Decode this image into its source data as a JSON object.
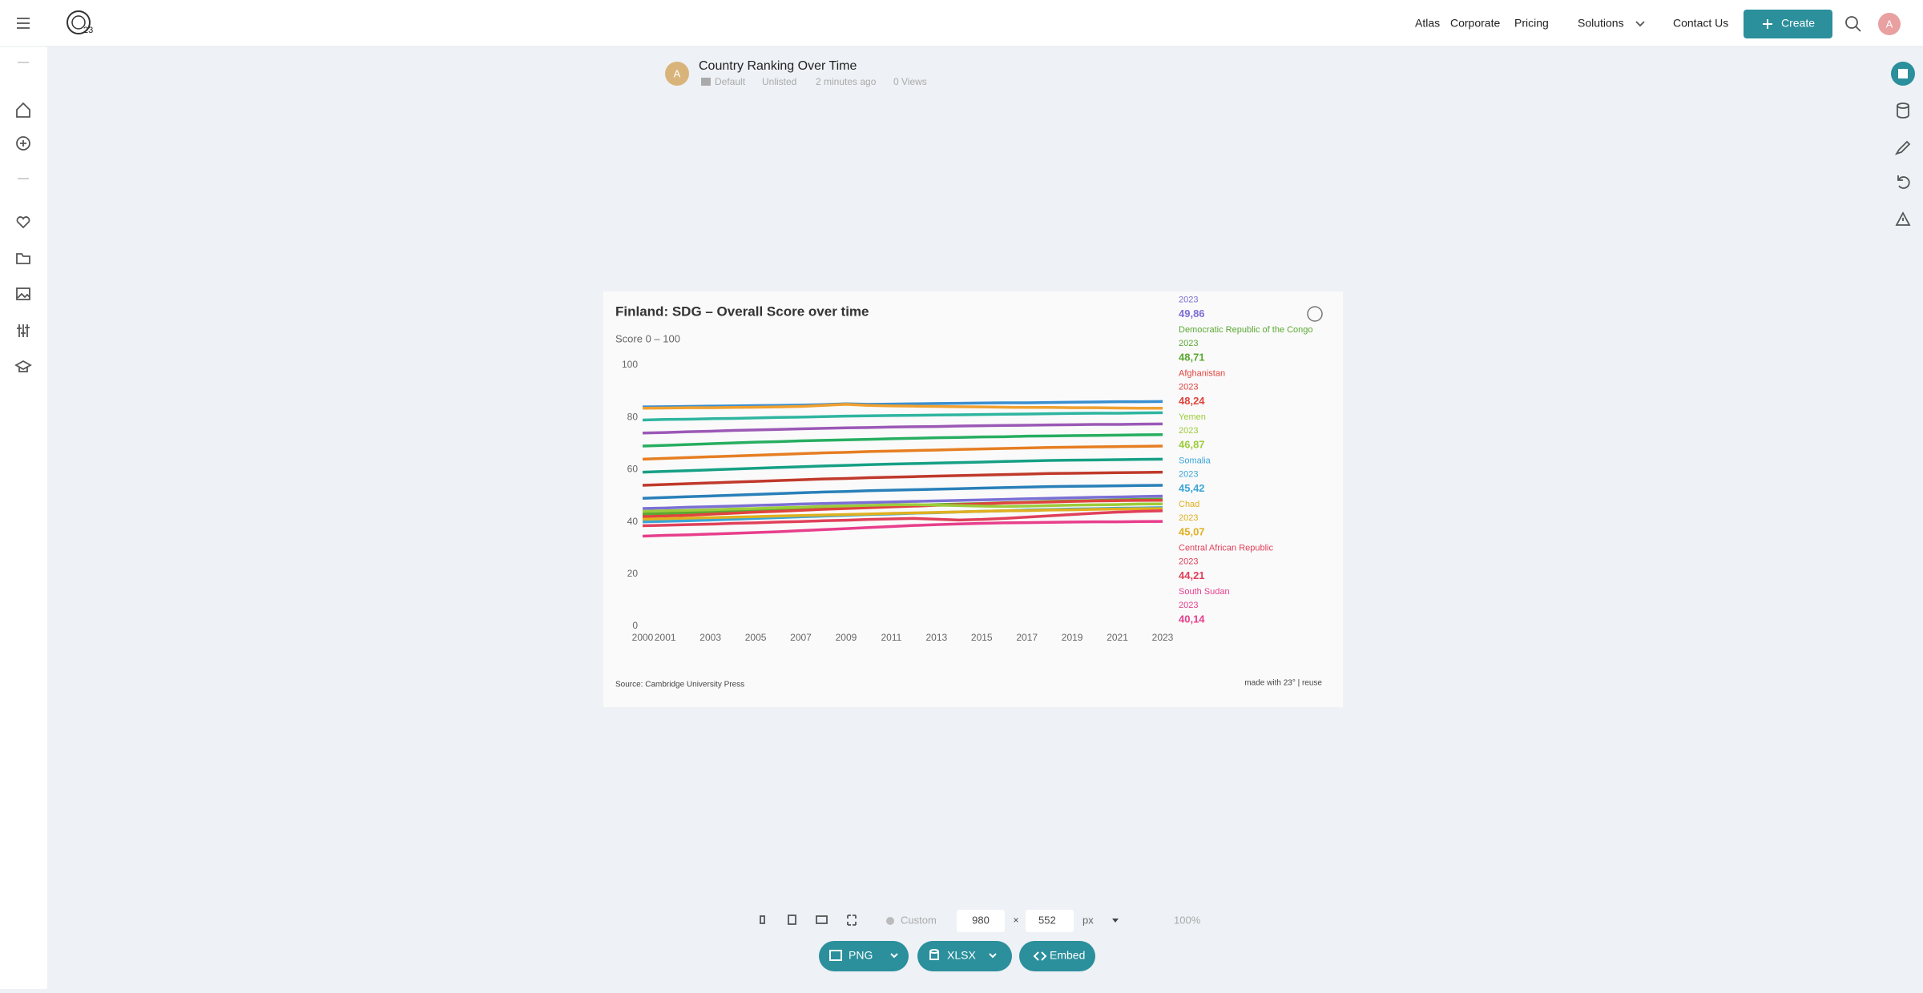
{
  "nav": {
    "items": [
      "Atlas",
      "Corporate",
      "Pricing",
      "Solutions",
      "Contact Us"
    ],
    "create": "Create",
    "avatar": "A"
  },
  "doc": {
    "avatar": "A",
    "title": "Country Ranking Over Time",
    "folder": "Default",
    "visibility": "Unlisted",
    "time": "2 minutes ago",
    "views": "0 Views"
  },
  "chart_data": {
    "type": "line",
    "title": "Finland: SDG – Overall Score over time",
    "subtitle": "Score 0 – 100",
    "source": "Source: Cambridge University Press",
    "credit": "made with 23° | reuse",
    "x": [
      2000,
      2001,
      2002,
      2003,
      2004,
      2005,
      2006,
      2007,
      2008,
      2009,
      2010,
      2011,
      2012,
      2013,
      2014,
      2015,
      2016,
      2017,
      2018,
      2019,
      2020,
      2021,
      2022,
      2023
    ],
    "xlim": [
      2000,
      2023
    ],
    "xticks": [
      2000,
      2001,
      2003,
      2005,
      2007,
      2009,
      2011,
      2013,
      2015,
      2017,
      2019,
      2021,
      2023
    ],
    "ylim": [
      0,
      100
    ],
    "yticks": [
      0,
      20,
      40,
      60,
      80,
      100
    ],
    "grid": false,
    "series": [
      {
        "color": "#3a8fd0",
        "values": [
          84.0,
          84.1,
          84.2,
          84.3,
          84.4,
          84.5,
          84.6,
          84.7,
          84.9,
          85.2,
          85.0,
          85.1,
          85.2,
          85.3,
          85.4,
          85.5,
          85.6,
          85.6,
          85.7,
          85.8,
          85.9,
          86.0,
          86.0,
          86.1
        ]
      },
      {
        "color": "#f0a030",
        "values": [
          83.5,
          83.6,
          83.7,
          83.7,
          83.8,
          83.9,
          84.0,
          84.2,
          84.6,
          85.0,
          84.6,
          84.4,
          84.3,
          84.2,
          84.1,
          84.0,
          83.9,
          83.8,
          83.8,
          83.7,
          83.7,
          83.6,
          83.5,
          83.5
        ]
      },
      {
        "color": "#2fb5a0",
        "values": [
          79.0,
          79.2,
          79.3,
          79.5,
          79.6,
          79.8,
          80.0,
          80.1,
          80.3,
          80.5,
          80.6,
          80.7,
          80.8,
          80.9,
          81.0,
          81.1,
          81.2,
          81.3,
          81.4,
          81.5,
          81.6,
          81.6,
          81.7,
          81.8
        ]
      },
      {
        "color": "#9b59b6",
        "values": [
          74.0,
          74.2,
          74.5,
          74.7,
          75.0,
          75.2,
          75.4,
          75.6,
          75.8,
          76.0,
          76.1,
          76.3,
          76.4,
          76.5,
          76.7,
          76.8,
          76.9,
          77.0,
          77.1,
          77.2,
          77.3,
          77.3,
          77.4,
          77.5
        ]
      },
      {
        "color": "#27ae60",
        "values": [
          69.0,
          69.3,
          69.6,
          69.9,
          70.2,
          70.5,
          70.7,
          71.0,
          71.2,
          71.4,
          71.6,
          71.8,
          72.0,
          72.2,
          72.3,
          72.5,
          72.6,
          72.8,
          72.9,
          73.0,
          73.1,
          73.2,
          73.3,
          73.4
        ]
      },
      {
        "color": "#e67e22",
        "values": [
          64.0,
          64.3,
          64.6,
          64.9,
          65.2,
          65.5,
          65.8,
          66.1,
          66.4,
          66.6,
          66.9,
          67.1,
          67.3,
          67.5,
          67.7,
          67.9,
          68.1,
          68.3,
          68.5,
          68.6,
          68.7,
          68.8,
          68.9,
          69.0
        ]
      },
      {
        "color": "#16a085",
        "values": [
          59.0,
          59.3,
          59.6,
          59.9,
          60.2,
          60.5,
          60.8,
          61.1,
          61.4,
          61.6,
          61.9,
          62.1,
          62.3,
          62.5,
          62.7,
          62.9,
          63.1,
          63.3,
          63.5,
          63.6,
          63.7,
          63.8,
          63.9,
          64.0
        ]
      },
      {
        "color": "#c0392b",
        "values": [
          54.0,
          54.3,
          54.6,
          54.9,
          55.2,
          55.5,
          55.8,
          56.1,
          56.4,
          56.6,
          56.9,
          57.1,
          57.3,
          57.5,
          57.7,
          57.9,
          58.1,
          58.3,
          58.5,
          58.6,
          58.7,
          58.8,
          58.9,
          59.0
        ]
      },
      {
        "color": "#2980b9",
        "values": [
          49.0,
          49.3,
          49.6,
          49.9,
          50.2,
          50.5,
          50.8,
          51.1,
          51.4,
          51.6,
          51.9,
          52.1,
          52.3,
          52.5,
          52.7,
          52.9,
          53.1,
          53.3,
          53.5,
          53.6,
          53.7,
          53.8,
          53.9,
          54.0
        ]
      },
      {
        "color": "#7b6fd6",
        "value_label": "49,86",
        "values": [
          45.1,
          45.3,
          45.6,
          45.8,
          46.0,
          46.3,
          46.5,
          46.8,
          47.0,
          47.2,
          47.4,
          47.6,
          47.8,
          48.0,
          48.2,
          48.4,
          48.6,
          48.8,
          49.0,
          49.2,
          49.4,
          49.5,
          49.7,
          49.86
        ]
      },
      {
        "name": "Democratic Republic of the Congo",
        "color": "#5aa832",
        "value_label": "48,71",
        "values": [
          43.0,
          43.2,
          43.5,
          43.8,
          44.1,
          44.4,
          44.7,
          45.0,
          45.3,
          45.6,
          45.9,
          46.1,
          46.3,
          46.6,
          46.8,
          47.0,
          47.3,
          47.5,
          47.8,
          48.0,
          48.2,
          48.4,
          48.6,
          48.71
        ]
      },
      {
        "name": "Afghanistan",
        "color": "#e0443e",
        "value_label": "48,24",
        "values": [
          42.0,
          42.2,
          42.5,
          42.9,
          43.3,
          43.7,
          44.0,
          44.4,
          44.8,
          45.1,
          45.4,
          45.7,
          46.0,
          46.3,
          46.6,
          46.9,
          47.2,
          47.4,
          47.6,
          47.8,
          48.0,
          48.1,
          48.2,
          48.24
        ]
      },
      {
        "name": "Yemen",
        "color": "#9ccc3a",
        "value_label": "46,87",
        "values": [
          44.0,
          44.2,
          44.4,
          44.6,
          44.9,
          45.1,
          45.4,
          45.6,
          45.9,
          46.1,
          46.3,
          46.5,
          46.6,
          46.4,
          46.2,
          46.0,
          45.9,
          46.0,
          46.2,
          46.4,
          46.5,
          46.6,
          46.8,
          46.87
        ]
      },
      {
        "name": "Somalia",
        "color": "#3ba5d8",
        "value_label": "45,42",
        "values": [
          40.0,
          40.2,
          40.4,
          40.7,
          41.0,
          41.3,
          41.6,
          41.9,
          42.2,
          42.5,
          42.8,
          43.0,
          43.3,
          43.5,
          43.8,
          44.0,
          44.2,
          44.5,
          44.7,
          44.9,
          45.0,
          45.2,
          45.3,
          45.42
        ]
      },
      {
        "name": "Chad",
        "color": "#e0b020",
        "value_label": "45,07",
        "values": [
          41.0,
          41.2,
          41.4,
          41.6,
          41.8,
          42.0,
          42.2,
          42.4,
          42.6,
          42.8,
          43.0,
          43.2,
          43.4,
          43.6,
          43.8,
          44.0,
          44.2,
          44.3,
          44.5,
          44.6,
          44.8,
          44.9,
          45.0,
          45.07
        ]
      },
      {
        "name": "Central African Republic",
        "color": "#e0405a",
        "value_label": "44,21",
        "values": [
          38.5,
          38.7,
          38.9,
          39.1,
          39.4,
          39.6,
          39.9,
          40.1,
          40.4,
          40.6,
          40.9,
          41.1,
          41.3,
          41.0,
          40.7,
          40.9,
          41.3,
          41.8,
          42.3,
          42.8,
          43.3,
          43.7,
          44.0,
          44.21
        ]
      },
      {
        "name": "South Sudan",
        "color": "#e83e8c",
        "value_label": "40,14",
        "values": [
          34.5,
          34.8,
          35.0,
          35.3,
          35.6,
          35.9,
          36.2,
          36.6,
          37.0,
          37.4,
          37.8,
          38.2,
          38.6,
          38.9,
          39.2,
          39.4,
          39.6,
          39.7,
          39.8,
          39.9,
          40.0,
          40.0,
          40.1,
          40.14
        ]
      }
    ]
  },
  "toolbar": {
    "preset": "Custom",
    "width": 980,
    "times": "×",
    "height": 552,
    "unit": "px",
    "zoom": "100%",
    "png": "PNG",
    "xlsx": "XLSX",
    "embed": "Embed"
  }
}
